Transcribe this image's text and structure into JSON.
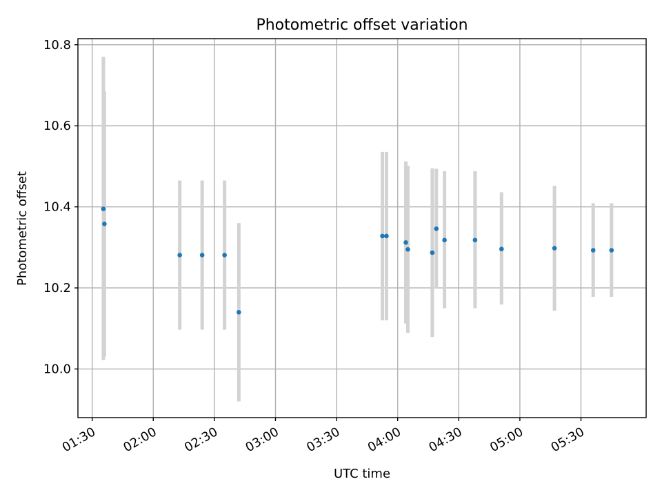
{
  "chart_data": {
    "type": "scatter",
    "title": "Photometric offset variation",
    "xlabel": "UTC time",
    "ylabel": "Photometric offset",
    "x_unit": "UTC HH:MM",
    "xlim": [
      "01:23",
      "06:02"
    ],
    "ylim": [
      9.88,
      10.815
    ],
    "x_ticks": [
      "01:30",
      "02:00",
      "02:30",
      "03:00",
      "03:30",
      "04:00",
      "04:30",
      "05:00",
      "05:30"
    ],
    "y_ticks": [
      "10.0",
      "10.2",
      "10.4",
      "10.6",
      "10.8"
    ],
    "y_tick_values": [
      10.0,
      10.2,
      10.4,
      10.6,
      10.8
    ],
    "grid": true,
    "colors": {
      "marker": "#1f77b4",
      "errorbar": "#d3d3d3",
      "grid": "#b0b0b0"
    },
    "points": [
      {
        "x": "01:35:30",
        "y": 10.395,
        "y_low": 10.022,
        "y_high": 10.77
      },
      {
        "x": "01:36:00",
        "y": 10.358,
        "y_low": 10.031,
        "y_high": 10.685
      },
      {
        "x": "02:13:00",
        "y": 10.281,
        "y_low": 10.097,
        "y_high": 10.465
      },
      {
        "x": "02:24:00",
        "y": 10.281,
        "y_low": 10.097,
        "y_high": 10.465
      },
      {
        "x": "02:35:00",
        "y": 10.281,
        "y_low": 10.097,
        "y_high": 10.465
      },
      {
        "x": "02:42:00",
        "y": 10.14,
        "y_low": 9.92,
        "y_high": 10.36
      },
      {
        "x": "03:52:30",
        "y": 10.328,
        "y_low": 10.12,
        "y_high": 10.536
      },
      {
        "x": "03:54:30",
        "y": 10.328,
        "y_low": 10.12,
        "y_high": 10.536
      },
      {
        "x": "04:04:00",
        "y": 10.312,
        "y_low": 10.112,
        "y_high": 10.512
      },
      {
        "x": "04:05:00",
        "y": 10.295,
        "y_low": 10.089,
        "y_high": 10.501
      },
      {
        "x": "04:17:00",
        "y": 10.287,
        "y_low": 10.079,
        "y_high": 10.495
      },
      {
        "x": "04:19:00",
        "y": 10.346,
        "y_low": 10.198,
        "y_high": 10.494
      },
      {
        "x": "04:23:00",
        "y": 10.318,
        "y_low": 10.15,
        "y_high": 10.488
      },
      {
        "x": "04:38:00",
        "y": 10.318,
        "y_low": 10.15,
        "y_high": 10.488
      },
      {
        "x": "04:51:00",
        "y": 10.296,
        "y_low": 10.159,
        "y_high": 10.436
      },
      {
        "x": "05:17:00",
        "y": 10.298,
        "y_low": 10.144,
        "y_high": 10.452
      },
      {
        "x": "05:36:00",
        "y": 10.293,
        "y_low": 10.178,
        "y_high": 10.409
      },
      {
        "x": "05:45:00",
        "y": 10.293,
        "y_low": 10.178,
        "y_high": 10.409
      }
    ]
  }
}
